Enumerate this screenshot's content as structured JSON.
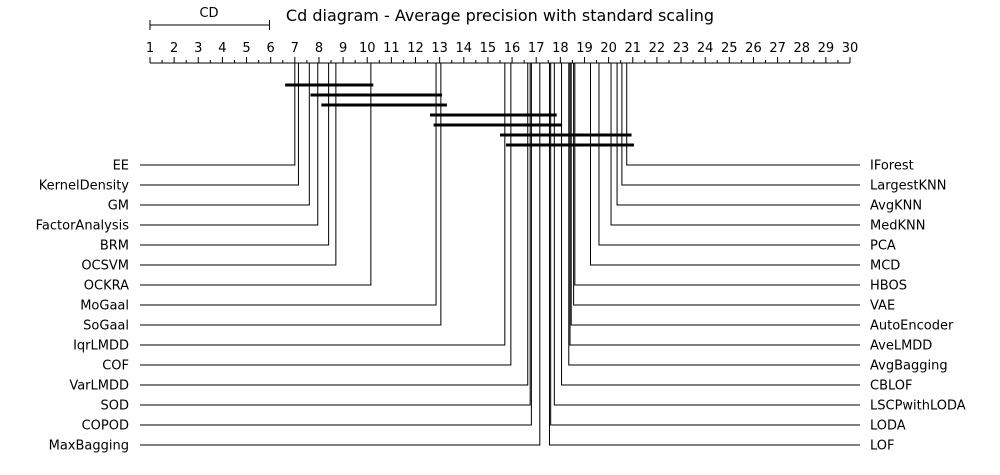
{
  "chart_data": {
    "type": "critical-difference-diagram",
    "title": "Cd diagram - Average precision with standard scaling",
    "cd_label": "CD",
    "cd_value": 4.95,
    "axis": {
      "min": 1,
      "max": 30,
      "ticks": [
        "1",
        "2",
        "3",
        "4",
        "5",
        "6",
        "7",
        "8",
        "9",
        "10",
        "11",
        "12",
        "13",
        "14",
        "15",
        "16",
        "17",
        "18",
        "19",
        "20",
        "21",
        "22",
        "23",
        "24",
        "25",
        "26",
        "27",
        "28",
        "29",
        "30"
      ]
    },
    "left_methods": [
      {
        "name": "EE",
        "rank": 7.0
      },
      {
        "name": "KernelDensity",
        "rank": 7.15
      },
      {
        "name": "GM",
        "rank": 7.6
      },
      {
        "name": "FactorAnalysis",
        "rank": 7.95
      },
      {
        "name": "BRM",
        "rank": 8.4
      },
      {
        "name": "OCSVM",
        "rank": 8.7
      },
      {
        "name": "OCKRA",
        "rank": 10.15
      },
      {
        "name": "MoGaal",
        "rank": 12.85
      },
      {
        "name": "SoGaal",
        "rank": 13.05
      },
      {
        "name": "IqrLMDD",
        "rank": 15.7
      },
      {
        "name": "COF",
        "rank": 15.95
      },
      {
        "name": "VarLMDD",
        "rank": 16.65
      },
      {
        "name": "SOD",
        "rank": 16.75
      },
      {
        "name": "COPOD",
        "rank": 16.8
      },
      {
        "name": "MaxBagging",
        "rank": 17.15
      }
    ],
    "right_methods": [
      {
        "name": "IForest",
        "rank": 20.75
      },
      {
        "name": "LargestKNN",
        "rank": 20.55
      },
      {
        "name": "AvgKNN",
        "rank": 20.35
      },
      {
        "name": "MedKNN",
        "rank": 20.1
      },
      {
        "name": "PCA",
        "rank": 19.6
      },
      {
        "name": "MCD",
        "rank": 19.25
      },
      {
        "name": "HBOS",
        "rank": 18.6
      },
      {
        "name": "VAE",
        "rank": 18.55
      },
      {
        "name": "AutoEncoder",
        "rank": 18.45
      },
      {
        "name": "AveLMDD",
        "rank": 18.4
      },
      {
        "name": "AvgBagging",
        "rank": 18.35
      },
      {
        "name": "CBLOF",
        "rank": 18.05
      },
      {
        "name": "LSCPwithLODA",
        "rank": 17.75
      },
      {
        "name": "LODA",
        "rank": 17.6
      },
      {
        "name": "LOF",
        "rank": 17.55
      }
    ],
    "cliques": [
      {
        "from": 6.6,
        "to": 10.25
      },
      {
        "from": 7.65,
        "to": 13.1
      },
      {
        "from": 8.1,
        "to": 13.3
      },
      {
        "from": 12.6,
        "to": 17.85
      },
      {
        "from": 12.75,
        "to": 18.05
      },
      {
        "from": 15.5,
        "to": 20.95
      },
      {
        "from": 15.75,
        "to": 21.05
      }
    ]
  }
}
